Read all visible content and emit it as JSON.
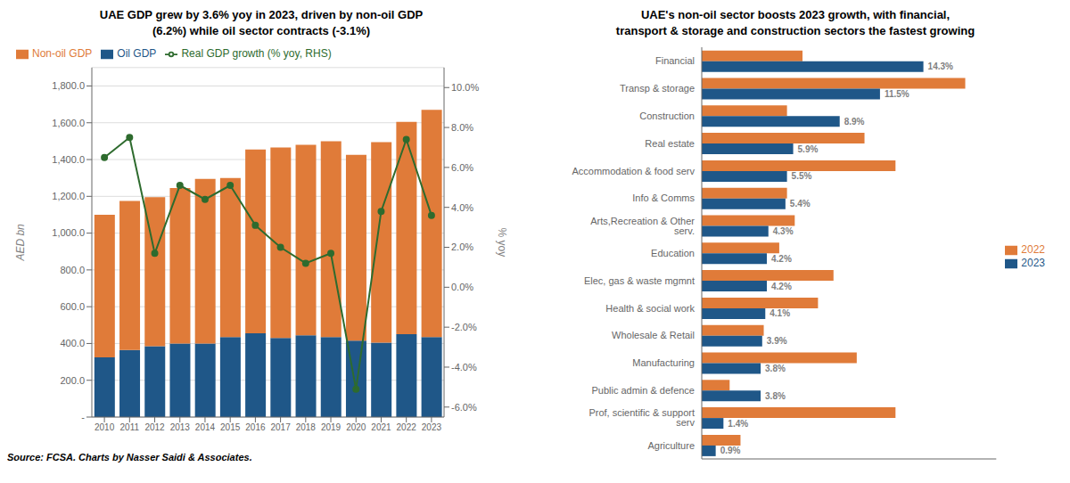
{
  "chart_data": [
    {
      "type": "bar",
      "title": "UAE GDP grew by 3.6% yoy in 2023, driven by non-oil GDP\n(6.2%) while oil sector contracts (-3.1%)",
      "categories": [
        "2010",
        "2011",
        "2012",
        "2013",
        "2014",
        "2015",
        "2016",
        "2017",
        "2018",
        "2019",
        "2020",
        "2021",
        "2022",
        "2023"
      ],
      "stacked": true,
      "series": [
        {
          "name": "Oil GDP",
          "color": "#1f5788",
          "values": [
            325,
            365,
            385,
            400,
            400,
            435,
            455,
            430,
            445,
            435,
            415,
            405,
            450,
            435
          ]
        },
        {
          "name": "Non-oil GDP",
          "color": "#e07b39",
          "values": [
            775,
            810,
            810,
            845,
            895,
            865,
            1000,
            1035,
            1035,
            1065,
            1010,
            1090,
            1155,
            1235
          ]
        },
        {
          "name": "Real GDP growth (% yoy, RHS)",
          "type": "line",
          "axis": "y2",
          "color": "#2e6b2e",
          "marker": "circle",
          "values": [
            6.5,
            7.5,
            1.7,
            5.1,
            4.4,
            5.1,
            3.1,
            2.0,
            1.2,
            1.7,
            -5.1,
            3.8,
            7.4,
            3.6
          ]
        }
      ],
      "ylabel": "AED bn",
      "y2label": "% yoy",
      "ylim": [
        0,
        1900
      ],
      "yticks": [
        {
          "value": 0,
          "label": "-"
        },
        {
          "value": 200,
          "label": "200.0"
        },
        {
          "value": 400,
          "label": "400.0"
        },
        {
          "value": 600,
          "label": "600.0"
        },
        {
          "value": 800,
          "label": "800.0"
        },
        {
          "value": 1000,
          "label": "1,000.0"
        },
        {
          "value": 1200,
          "label": "1,200.0"
        },
        {
          "value": 1400,
          "label": "1,400.0"
        },
        {
          "value": 1600,
          "label": "1,600.0"
        },
        {
          "value": 1800,
          "label": "1,800.0"
        }
      ],
      "y2lim": [
        -6.5,
        11.0
      ],
      "y2ticks": [
        {
          "value": -6.0,
          "label": "-6.0%"
        },
        {
          "value": -4.0,
          "label": "-4.0%"
        },
        {
          "value": -2.0,
          "label": "-2.0%"
        },
        {
          "value": 0.0,
          "label": "0.0%"
        },
        {
          "value": 2.0,
          "label": "2.0%"
        },
        {
          "value": 4.0,
          "label": "4.0%"
        },
        {
          "value": 6.0,
          "label": "6.0%"
        },
        {
          "value": 8.0,
          "label": "8.0%"
        },
        {
          "value": 10.0,
          "label": "10.0%"
        }
      ],
      "grid": true,
      "legend": "upper left",
      "annotations": [
        "Source: FCSA. Charts by Nasser Saidi & Associates."
      ]
    },
    {
      "type": "bar",
      "orientation": "horizontal",
      "title": "UAE's non-oil sector boosts 2023 growth, with financial,\ntransport & storage and construction sectors the fastest growing",
      "categories": [
        "Financial",
        "Transp & storage",
        "Construction",
        "Real estate",
        "Accommodation & food serv",
        "Info & Comms",
        "Arts,Recreation & Other serv.",
        "Education",
        "Elec, gas & waste mgmnt",
        "Health & social work",
        "Wholesale & Retail",
        "Manufacturing",
        "Public admin & defence",
        "Prof, scientific & support serv",
        "Agriculture"
      ],
      "series": [
        {
          "name": "2022",
          "color": "#e07b39",
          "values": [
            6.5,
            17.0,
            5.5,
            10.5,
            12.5,
            5.5,
            6.0,
            5.0,
            8.5,
            7.5,
            4.0,
            10.0,
            1.8,
            12.5,
            2.5
          ]
        },
        {
          "name": "2023",
          "color": "#1f5788",
          "values": [
            14.3,
            11.5,
            8.9,
            5.9,
            5.5,
            5.4,
            4.3,
            4.2,
            4.2,
            4.1,
            3.9,
            3.8,
            3.8,
            1.4,
            0.9
          ],
          "data_labels": true,
          "value_labels": [
            "14.3%",
            "11.5%",
            "8.9%",
            "5.9%",
            "5.5%",
            "5.4%",
            "4.3%",
            "4.2%",
            "4.2%",
            "4.1%",
            "3.9%",
            "3.8%",
            "3.8%",
            "1.4%",
            "0.9%"
          ]
        }
      ],
      "xlim": [
        0,
        19
      ],
      "tick_labels": "y",
      "grid": false,
      "legend": "right"
    }
  ]
}
